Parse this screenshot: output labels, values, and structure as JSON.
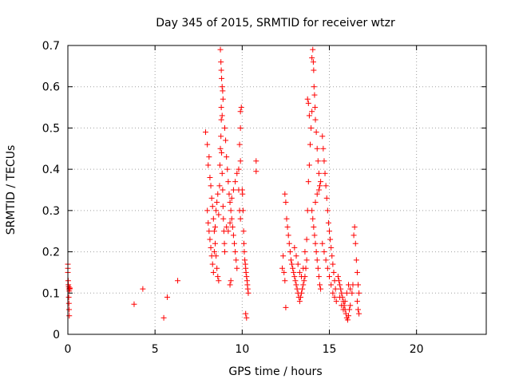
{
  "chart_data": {
    "type": "scatter",
    "title": "Day 345 of 2015, SRMTID for receiver wtzr",
    "xlabel": "GPS time / hours",
    "ylabel": "SRMTID / TECUs",
    "xlim": [
      0,
      24
    ],
    "ylim": [
      0,
      0.7
    ],
    "xticks": [
      0,
      5,
      10,
      15,
      20
    ],
    "yticks": [
      0,
      0.1,
      0.2,
      0.3,
      0.4,
      0.5,
      0.6,
      0.7
    ],
    "grid": true,
    "marker": "plus",
    "marker_color": "#ff0000",
    "series": [
      {
        "name": "SRMTID",
        "points": [
          [
            0.0,
            0.17
          ],
          [
            0.0,
            0.16
          ],
          [
            0.0,
            0.15
          ],
          [
            0.02,
            0.13
          ],
          [
            0.03,
            0.12
          ],
          [
            0.05,
            0.115
          ],
          [
            0.06,
            0.11
          ],
          [
            0.08,
            0.105
          ],
          [
            0.05,
            0.09
          ],
          [
            0.06,
            0.075
          ],
          [
            0.07,
            0.06
          ],
          [
            0.08,
            0.045
          ],
          [
            0.1,
            0.11
          ],
          [
            0.12,
            0.112
          ],
          [
            3.8,
            0.073
          ],
          [
            4.3,
            0.11
          ],
          [
            5.5,
            0.04
          ],
          [
            5.7,
            0.09
          ],
          [
            6.3,
            0.13
          ],
          [
            7.9,
            0.49
          ],
          [
            8.0,
            0.46
          ],
          [
            8.05,
            0.41
          ],
          [
            8.1,
            0.43
          ],
          [
            8.15,
            0.38
          ],
          [
            8.2,
            0.36
          ],
          [
            8.25,
            0.33
          ],
          [
            8.3,
            0.31
          ],
          [
            8.35,
            0.28
          ],
          [
            8.4,
            0.25
          ],
          [
            8.45,
            0.22
          ],
          [
            8.5,
            0.19
          ],
          [
            8.55,
            0.16
          ],
          [
            8.6,
            0.14
          ],
          [
            8.65,
            0.13
          ],
          [
            8.0,
            0.3
          ],
          [
            8.05,
            0.27
          ],
          [
            8.1,
            0.25
          ],
          [
            8.15,
            0.23
          ],
          [
            8.2,
            0.21
          ],
          [
            8.25,
            0.19
          ],
          [
            8.3,
            0.17
          ],
          [
            8.35,
            0.15
          ],
          [
            8.4,
            0.2
          ],
          [
            8.45,
            0.26
          ],
          [
            8.5,
            0.3
          ],
          [
            8.55,
            0.32
          ],
          [
            8.6,
            0.34
          ],
          [
            8.65,
            0.29
          ],
          [
            8.7,
            0.36
          ],
          [
            8.72,
            0.41
          ],
          [
            8.75,
            0.45
          ],
          [
            8.78,
            0.48
          ],
          [
            8.8,
            0.52
          ],
          [
            8.82,
            0.44
          ],
          [
            8.85,
            0.39
          ],
          [
            8.88,
            0.35
          ],
          [
            8.9,
            0.31
          ],
          [
            8.92,
            0.28
          ],
          [
            8.95,
            0.25
          ],
          [
            8.98,
            0.22
          ],
          [
            9.0,
            0.2
          ],
          [
            8.75,
            0.69
          ],
          [
            8.78,
            0.66
          ],
          [
            8.8,
            0.64
          ],
          [
            8.82,
            0.62
          ],
          [
            8.85,
            0.6
          ],
          [
            8.88,
            0.59
          ],
          [
            8.9,
            0.57
          ],
          [
            8.8,
            0.55
          ],
          [
            8.85,
            0.53
          ],
          [
            9.0,
            0.5
          ],
          [
            9.05,
            0.47
          ],
          [
            9.1,
            0.43
          ],
          [
            9.15,
            0.4
          ],
          [
            9.2,
            0.37
          ],
          [
            9.25,
            0.34
          ],
          [
            9.3,
            0.32
          ],
          [
            9.35,
            0.3
          ],
          [
            9.4,
            0.28
          ],
          [
            9.45,
            0.26
          ],
          [
            9.5,
            0.24
          ],
          [
            9.55,
            0.22
          ],
          [
            9.6,
            0.2
          ],
          [
            9.65,
            0.18
          ],
          [
            9.7,
            0.16
          ],
          [
            9.3,
            0.12
          ],
          [
            9.35,
            0.13
          ],
          [
            9.1,
            0.26
          ],
          [
            9.2,
            0.25
          ],
          [
            9.3,
            0.27
          ],
          [
            9.4,
            0.33
          ],
          [
            9.5,
            0.35
          ],
          [
            9.6,
            0.37
          ],
          [
            9.7,
            0.39
          ],
          [
            9.8,
            0.4
          ],
          [
            9.9,
            0.42
          ],
          [
            9.85,
            0.46
          ],
          [
            9.9,
            0.5
          ],
          [
            9.95,
            0.55
          ],
          [
            9.9,
            0.54
          ],
          [
            9.8,
            0.35
          ],
          [
            9.85,
            0.3
          ],
          [
            9.9,
            0.28
          ],
          [
            10.0,
            0.35
          ],
          [
            10.02,
            0.34
          ],
          [
            10.05,
            0.3
          ],
          [
            10.08,
            0.25
          ],
          [
            10.1,
            0.22
          ],
          [
            10.12,
            0.2
          ],
          [
            10.15,
            0.18
          ],
          [
            10.18,
            0.17
          ],
          [
            10.2,
            0.16
          ],
          [
            10.22,
            0.15
          ],
          [
            10.25,
            0.14
          ],
          [
            10.28,
            0.13
          ],
          [
            10.3,
            0.12
          ],
          [
            10.32,
            0.11
          ],
          [
            10.35,
            0.1
          ],
          [
            10.2,
            0.05
          ],
          [
            10.25,
            0.04
          ],
          [
            10.8,
            0.42
          ],
          [
            10.8,
            0.395
          ],
          [
            12.3,
            0.16
          ],
          [
            12.35,
            0.19
          ],
          [
            12.4,
            0.15
          ],
          [
            12.45,
            0.13
          ],
          [
            12.5,
            0.065
          ],
          [
            12.45,
            0.34
          ],
          [
            12.5,
            0.32
          ],
          [
            12.55,
            0.28
          ],
          [
            12.6,
            0.26
          ],
          [
            12.65,
            0.24
          ],
          [
            12.7,
            0.22
          ],
          [
            12.75,
            0.2
          ],
          [
            12.8,
            0.18
          ],
          [
            12.85,
            0.17
          ],
          [
            12.9,
            0.16
          ],
          [
            12.95,
            0.15
          ],
          [
            13.0,
            0.14
          ],
          [
            13.05,
            0.13
          ],
          [
            13.1,
            0.12
          ],
          [
            13.15,
            0.11
          ],
          [
            13.2,
            0.1
          ],
          [
            13.25,
            0.09
          ],
          [
            13.3,
            0.08
          ],
          [
            13.35,
            0.09
          ],
          [
            13.4,
            0.1
          ],
          [
            13.45,
            0.11
          ],
          [
            13.5,
            0.12
          ],
          [
            13.55,
            0.13
          ],
          [
            13.6,
            0.14
          ],
          [
            13.65,
            0.16
          ],
          [
            13.7,
            0.18
          ],
          [
            13.0,
            0.21
          ],
          [
            13.1,
            0.19
          ],
          [
            13.2,
            0.17
          ],
          [
            13.3,
            0.15
          ],
          [
            13.4,
            0.14
          ],
          [
            13.5,
            0.16
          ],
          [
            13.6,
            0.2
          ],
          [
            13.7,
            0.23
          ],
          [
            13.75,
            0.3
          ],
          [
            13.8,
            0.37
          ],
          [
            13.85,
            0.41
          ],
          [
            13.9,
            0.46
          ],
          [
            13.95,
            0.5
          ],
          [
            14.0,
            0.54
          ],
          [
            13.75,
            0.57
          ],
          [
            13.8,
            0.56
          ],
          [
            13.85,
            0.53
          ],
          [
            14.0,
            0.67
          ],
          [
            14.05,
            0.69
          ],
          [
            14.08,
            0.66
          ],
          [
            14.1,
            0.64
          ],
          [
            14.12,
            0.6
          ],
          [
            14.15,
            0.58
          ],
          [
            14.18,
            0.55
          ],
          [
            14.2,
            0.52
          ],
          [
            14.25,
            0.49
          ],
          [
            14.3,
            0.45
          ],
          [
            14.35,
            0.42
          ],
          [
            14.4,
            0.39
          ],
          [
            14.45,
            0.36
          ],
          [
            14.0,
            0.3
          ],
          [
            14.05,
            0.28
          ],
          [
            14.1,
            0.26
          ],
          [
            14.15,
            0.24
          ],
          [
            14.2,
            0.22
          ],
          [
            14.25,
            0.2
          ],
          [
            14.3,
            0.18
          ],
          [
            14.35,
            0.16
          ],
          [
            14.4,
            0.14
          ],
          [
            14.45,
            0.12
          ],
          [
            14.5,
            0.11
          ],
          [
            14.2,
            0.32
          ],
          [
            14.3,
            0.34
          ],
          [
            14.4,
            0.35
          ],
          [
            14.5,
            0.37
          ],
          [
            14.6,
            0.48
          ],
          [
            14.65,
            0.45
          ],
          [
            14.7,
            0.42
          ],
          [
            14.75,
            0.39
          ],
          [
            14.8,
            0.36
          ],
          [
            14.85,
            0.33
          ],
          [
            14.9,
            0.3
          ],
          [
            14.95,
            0.27
          ],
          [
            15.0,
            0.25
          ],
          [
            15.05,
            0.23
          ],
          [
            15.1,
            0.21
          ],
          [
            15.15,
            0.19
          ],
          [
            15.2,
            0.17
          ],
          [
            15.25,
            0.15
          ],
          [
            15.3,
            0.13
          ],
          [
            15.35,
            0.11
          ],
          [
            14.6,
            0.22
          ],
          [
            14.7,
            0.2
          ],
          [
            14.8,
            0.18
          ],
          [
            14.9,
            0.16
          ],
          [
            15.0,
            0.14
          ],
          [
            15.1,
            0.12
          ],
          [
            15.2,
            0.1
          ],
          [
            15.3,
            0.09
          ],
          [
            15.4,
            0.08
          ],
          [
            15.5,
            0.14
          ],
          [
            15.55,
            0.13
          ],
          [
            15.6,
            0.12
          ],
          [
            15.65,
            0.11
          ],
          [
            15.7,
            0.1
          ],
          [
            15.75,
            0.09
          ],
          [
            15.8,
            0.08
          ],
          [
            15.85,
            0.07
          ],
          [
            15.9,
            0.06
          ],
          [
            15.95,
            0.05
          ],
          [
            16.0,
            0.04
          ],
          [
            16.05,
            0.035
          ],
          [
            16.1,
            0.045
          ],
          [
            16.15,
            0.06
          ],
          [
            16.2,
            0.07
          ],
          [
            15.6,
            0.09
          ],
          [
            15.7,
            0.07
          ],
          [
            15.8,
            0.06
          ],
          [
            15.9,
            0.08
          ],
          [
            16.0,
            0.1
          ],
          [
            16.1,
            0.12
          ],
          [
            16.2,
            0.11
          ],
          [
            16.3,
            0.1
          ],
          [
            16.35,
            0.12
          ],
          [
            16.4,
            0.24
          ],
          [
            16.45,
            0.26
          ],
          [
            16.5,
            0.22
          ],
          [
            16.55,
            0.18
          ],
          [
            16.6,
            0.15
          ],
          [
            16.65,
            0.12
          ],
          [
            16.7,
            0.1
          ],
          [
            16.6,
            0.08
          ],
          [
            16.65,
            0.06
          ],
          [
            16.7,
            0.05
          ]
        ]
      }
    ]
  }
}
